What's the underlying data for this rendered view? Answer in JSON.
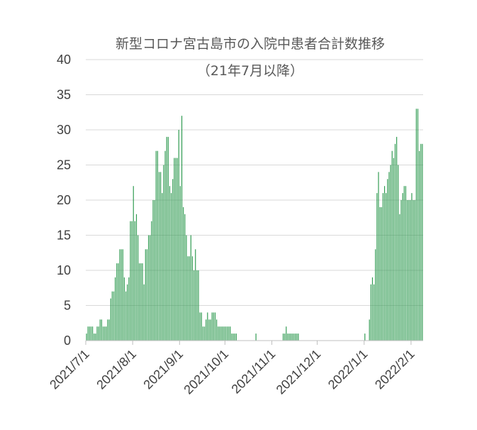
{
  "chart_data": {
    "type": "bar",
    "title": "新型コロナ宮古島市の入院中患者合計数推移",
    "subtitle": "（21年7月以降）",
    "xlabel": "",
    "ylabel": "",
    "ylim": [
      0,
      40
    ],
    "grid": true,
    "legend": "none",
    "color": "#2e9a50",
    "y_ticks": [
      "0",
      "5",
      "10",
      "15",
      "20",
      "25",
      "30",
      "35",
      "40"
    ],
    "x_tick_labels": [
      "2021/7/1",
      "2021/8/1",
      "2021/9/1",
      "2021/10/1",
      "2021/11/1",
      "2021/12/1",
      "2022/1/1",
      "2022/2/1"
    ],
    "start_date": "2021/7/1",
    "values": [
      1,
      2,
      2,
      2,
      2,
      1,
      1,
      2,
      2,
      3,
      3,
      2,
      2,
      2,
      3,
      3,
      6,
      7,
      7,
      9,
      11,
      11,
      13,
      13,
      13,
      9,
      7,
      8,
      9,
      17,
      17,
      22,
      17,
      18,
      15,
      11,
      11,
      11,
      8,
      13,
      13,
      15,
      15,
      17,
      20,
      20,
      27,
      27,
      24,
      24,
      21,
      25,
      27,
      29,
      29,
      22,
      21,
      23,
      26,
      26,
      26,
      30,
      22,
      32,
      19,
      18,
      15,
      12,
      12,
      15,
      12,
      10,
      13,
      10,
      10,
      4,
      4,
      2,
      2,
      3,
      4,
      3,
      3,
      4,
      4,
      4,
      3,
      2,
      2,
      2,
      2,
      2,
      2,
      2,
      2,
      2,
      1,
      1,
      1,
      1,
      0,
      0,
      0,
      0,
      0,
      0,
      0,
      0,
      0,
      0,
      0,
      0,
      1,
      0,
      0,
      0,
      0,
      0,
      0,
      0,
      0,
      0,
      0,
      0,
      0,
      0,
      0,
      0,
      0,
      0,
      1,
      1,
      2,
      1,
      1,
      1,
      1,
      1,
      1,
      1,
      1,
      0,
      0,
      0,
      0,
      0,
      0,
      0,
      0,
      0,
      0,
      0,
      0,
      0,
      0,
      0,
      0,
      0,
      0,
      0,
      0,
      0,
      0,
      0,
      0,
      0,
      0,
      0,
      0,
      0,
      0,
      0,
      0,
      0,
      0,
      0,
      0,
      0,
      0,
      0,
      0,
      0,
      0,
      0,
      1,
      0,
      0,
      3,
      8,
      9,
      8,
      13,
      21,
      24,
      19,
      19,
      21,
      22,
      21,
      23,
      24,
      25,
      27,
      26,
      28,
      29,
      25,
      18,
      20,
      21,
      22,
      22,
      20,
      20,
      20,
      21,
      20,
      20,
      33,
      33,
      27,
      28,
      28
    ]
  }
}
